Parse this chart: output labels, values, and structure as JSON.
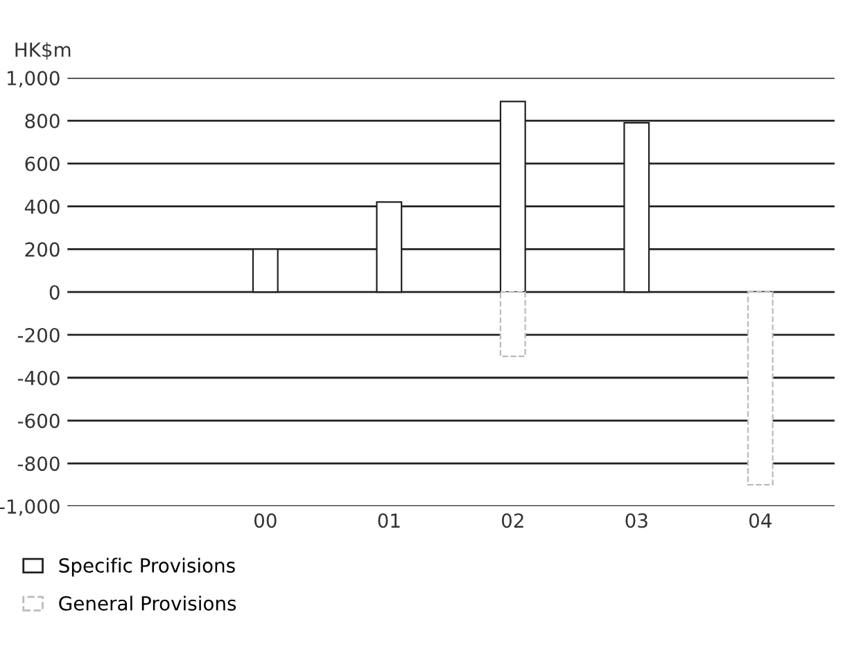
{
  "chart_data": {
    "type": "bar",
    "ylabel": "HK$m",
    "categories": [
      "00",
      "01",
      "02",
      "03",
      "04"
    ],
    "series": [
      {
        "name": "Specific Provisions",
        "color": "#ffffff",
        "values": [
          200,
          420,
          890,
          790,
          null
        ]
      },
      {
        "name": "General Provisions",
        "color": "#ffffff",
        "values": [
          null,
          null,
          -300,
          null,
          -900
        ]
      }
    ],
    "ylim": [
      -1000,
      1000
    ],
    "yticks": [
      {
        "value": -1000,
        "label": "-1,000"
      },
      -800,
      -600,
      -400,
      -200,
      0,
      200,
      400,
      600,
      800,
      {
        "value": 1000,
        "label": "1,000"
      }
    ],
    "grid": "y",
    "legend": "bottom"
  }
}
